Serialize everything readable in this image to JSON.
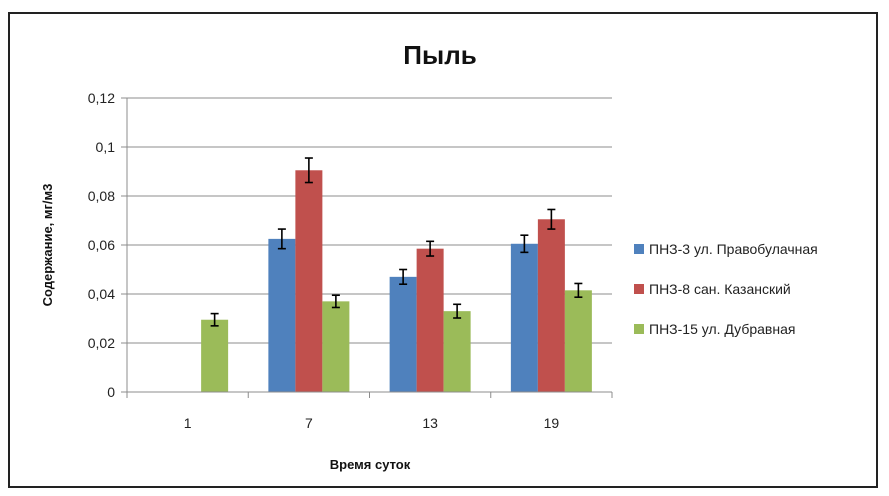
{
  "chart_data": {
    "type": "bar",
    "title": "Пыль",
    "xlabel": "Время суток",
    "ylabel": "Содержание, мг/м3",
    "categories": [
      "1",
      "7",
      "13",
      "19"
    ],
    "ylim": [
      0,
      0.12
    ],
    "yticks": [
      "0",
      "0,02",
      "0,04",
      "0,06",
      "0,08",
      "0,1",
      "0,12"
    ],
    "ytick_values": [
      0,
      0.02,
      0.04,
      0.06,
      0.08,
      0.1,
      0.12
    ],
    "grid": true,
    "legend_position": "right",
    "series": [
      {
        "name": "ПНЗ-3 ул. Правобулачная",
        "color": "#4f81bd",
        "values": [
          null,
          0.0625,
          0.047,
          0.0605
        ],
        "errors": [
          null,
          0.004,
          0.003,
          0.0035
        ]
      },
      {
        "name": "ПНЗ-8 сан. Казанский",
        "color": "#c0504d",
        "values": [
          null,
          0.0905,
          0.0585,
          0.0705
        ],
        "errors": [
          null,
          0.005,
          0.003,
          0.004
        ]
      },
      {
        "name": "ПНЗ-15 ул. Дубравная",
        "color": "#9bbb59",
        "values": [
          0.0295,
          0.037,
          0.033,
          0.0415
        ],
        "errors": [
          0.0025,
          0.0025,
          0.0028,
          0.0028
        ]
      }
    ]
  }
}
